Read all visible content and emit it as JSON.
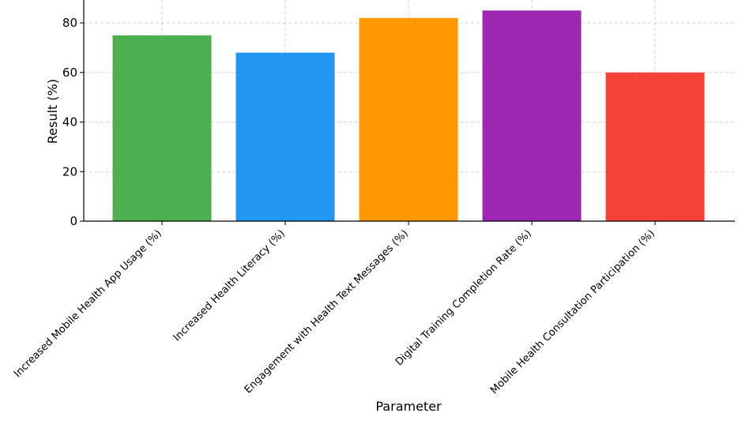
{
  "chart_data": {
    "type": "bar",
    "categories": [
      "Increased Mobile Health App Usage (%)",
      "Increased Health Literacy (%)",
      "Engagement with Health Text Messages (%)",
      "Digital Training Completion Rate (%)",
      "Mobile Health Consultation Participation (%)"
    ],
    "values": [
      75,
      68,
      82,
      85,
      60
    ],
    "colors": [
      "#4caf50",
      "#2196f3",
      "#ff9800",
      "#9c27b0",
      "#f44336"
    ],
    "xlabel": "Parameter",
    "ylabel": "Result (%)",
    "ylim": [
      0,
      89.25
    ],
    "yticks": [
      0,
      20,
      40,
      60,
      80
    ],
    "grid": true
  }
}
